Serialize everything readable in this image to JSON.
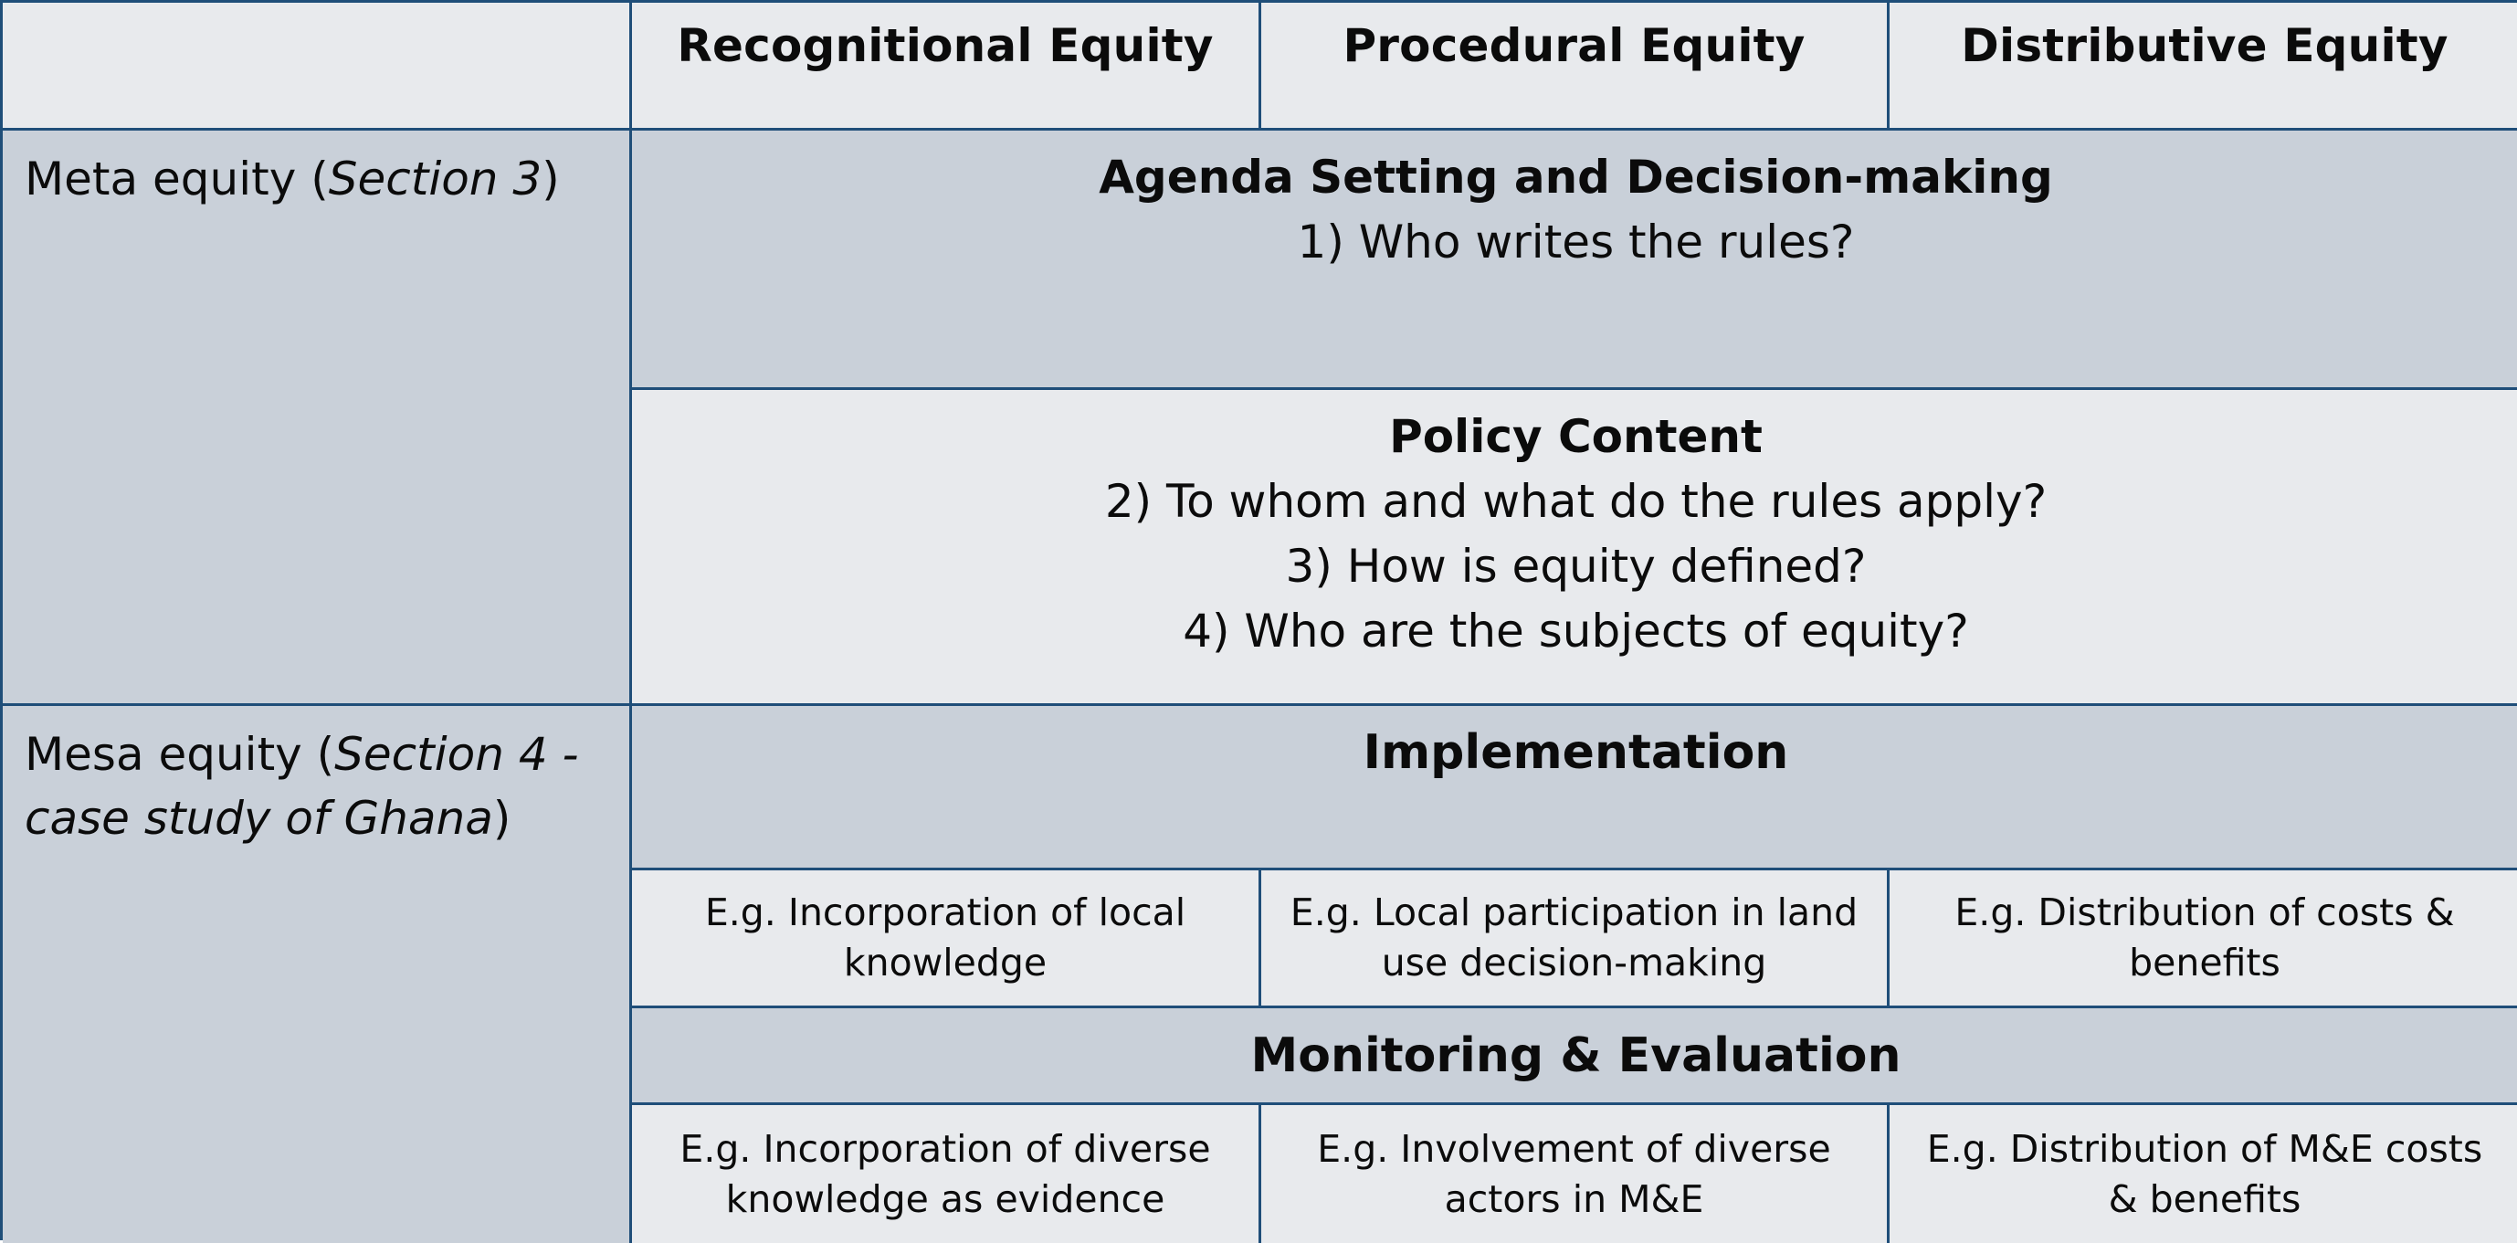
{
  "columns": [
    "Recognitional Equity",
    "Procedural Equity",
    "Distributive Equity"
  ],
  "meta": {
    "label": "Meta equity (",
    "label_italic": "Section 3",
    "label_close": ")",
    "agenda": {
      "title": "Agenda Setting and Decision-making",
      "questions": [
        "1) Who writes the rules?"
      ]
    },
    "policy": {
      "title": "Policy Content",
      "questions": [
        "2) To whom and what do the rules apply?",
        "3) How is equity defined?",
        "4) Who are the subjects of equity?"
      ]
    }
  },
  "mesa": {
    "label": "Mesa equity (",
    "label_italic": "Section 4 - case study of Ghana",
    "label_close": ")",
    "implementation": {
      "title": "Implementation",
      "examples": [
        "E.g. Incorporation of local knowledge",
        "E.g. Local participation in land use decision-making",
        "E.g. Distribution of costs & benefits"
      ]
    },
    "monitoring": {
      "title": "Monitoring & Evaluation",
      "examples": [
        "E.g. Incorporation of diverse knowledge as evidence",
        "E.g. Involvement of diverse actors in M&E",
        "E.g. Distribution of M&E costs & benefits"
      ]
    }
  },
  "colors": {
    "border": "#1f4e79",
    "light_fill": "#e8eaed",
    "dark_fill": "#c9d0d9"
  }
}
